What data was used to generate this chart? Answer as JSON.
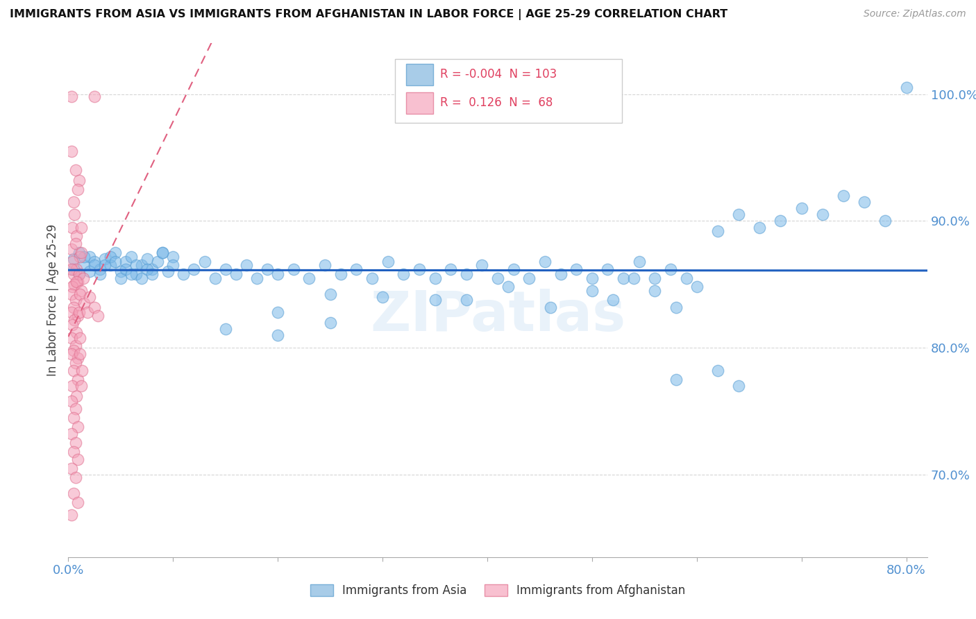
{
  "title": "IMMIGRANTS FROM ASIA VS IMMIGRANTS FROM AFGHANISTAN IN LABOR FORCE | AGE 25-29 CORRELATION CHART",
  "source": "Source: ZipAtlas.com",
  "ylabel": "In Labor Force | Age 25-29",
  "xlim": [
    0.0,
    0.82
  ],
  "ylim": [
    0.635,
    1.04
  ],
  "x_tick_positions": [
    0.0,
    0.1,
    0.2,
    0.3,
    0.4,
    0.5,
    0.6,
    0.7,
    0.8
  ],
  "x_tick_labels": [
    "0.0%",
    "",
    "",
    "",
    "",
    "",
    "",
    "",
    "80.0%"
  ],
  "y_tick_positions": [
    0.7,
    0.8,
    0.9,
    1.0
  ],
  "y_tick_labels": [
    "70.0%",
    "80.0%",
    "90.0%",
    "100.0%"
  ],
  "watermark": "ZIPatlas",
  "background_color": "#ffffff",
  "asia_color": "#7ab8e8",
  "asia_edge_color": "#5a9fd4",
  "afghan_color": "#f4a0b8",
  "afghan_edge_color": "#e07090",
  "asia_trend_color": "#2060c0",
  "afghan_trend_color": "#e06080",
  "asia_R": -0.004,
  "asia_N": 103,
  "afghan_R": 0.126,
  "afghan_N": 68,
  "legend_R_color": "#e04060",
  "tick_color": "#5090d0",
  "grid_color": "#cccccc",
  "asia_points": [
    [
      0.005,
      0.87
    ],
    [
      0.01,
      0.875
    ],
    [
      0.015,
      0.865
    ],
    [
      0.02,
      0.872
    ],
    [
      0.025,
      0.868
    ],
    [
      0.03,
      0.862
    ],
    [
      0.035,
      0.87
    ],
    [
      0.04,
      0.865
    ],
    [
      0.045,
      0.875
    ],
    [
      0.05,
      0.86
    ],
    [
      0.055,
      0.868
    ],
    [
      0.06,
      0.872
    ],
    [
      0.065,
      0.858
    ],
    [
      0.07,
      0.865
    ],
    [
      0.075,
      0.87
    ],
    [
      0.08,
      0.862
    ],
    [
      0.085,
      0.868
    ],
    [
      0.09,
      0.875
    ],
    [
      0.095,
      0.86
    ],
    [
      0.1,
      0.872
    ],
    [
      0.005,
      0.862
    ],
    [
      0.01,
      0.858
    ],
    [
      0.015,
      0.872
    ],
    [
      0.02,
      0.86
    ],
    [
      0.025,
      0.865
    ],
    [
      0.03,
      0.858
    ],
    [
      0.035,
      0.865
    ],
    [
      0.04,
      0.872
    ],
    [
      0.045,
      0.868
    ],
    [
      0.05,
      0.855
    ],
    [
      0.055,
      0.862
    ],
    [
      0.06,
      0.858
    ],
    [
      0.065,
      0.865
    ],
    [
      0.07,
      0.855
    ],
    [
      0.075,
      0.862
    ],
    [
      0.08,
      0.858
    ],
    [
      0.09,
      0.875
    ],
    [
      0.1,
      0.865
    ],
    [
      0.11,
      0.858
    ],
    [
      0.12,
      0.862
    ],
    [
      0.13,
      0.868
    ],
    [
      0.14,
      0.855
    ],
    [
      0.15,
      0.862
    ],
    [
      0.16,
      0.858
    ],
    [
      0.17,
      0.865
    ],
    [
      0.18,
      0.855
    ],
    [
      0.19,
      0.862
    ],
    [
      0.2,
      0.858
    ],
    [
      0.215,
      0.862
    ],
    [
      0.23,
      0.855
    ],
    [
      0.245,
      0.865
    ],
    [
      0.26,
      0.858
    ],
    [
      0.275,
      0.862
    ],
    [
      0.29,
      0.855
    ],
    [
      0.305,
      0.868
    ],
    [
      0.32,
      0.858
    ],
    [
      0.335,
      0.862
    ],
    [
      0.35,
      0.855
    ],
    [
      0.365,
      0.862
    ],
    [
      0.38,
      0.858
    ],
    [
      0.395,
      0.865
    ],
    [
      0.41,
      0.855
    ],
    [
      0.425,
      0.862
    ],
    [
      0.44,
      0.855
    ],
    [
      0.455,
      0.868
    ],
    [
      0.47,
      0.858
    ],
    [
      0.485,
      0.862
    ],
    [
      0.5,
      0.855
    ],
    [
      0.515,
      0.862
    ],
    [
      0.53,
      0.855
    ],
    [
      0.545,
      0.868
    ],
    [
      0.56,
      0.855
    ],
    [
      0.575,
      0.862
    ],
    [
      0.59,
      0.855
    ],
    [
      0.15,
      0.815
    ],
    [
      0.2,
      0.81
    ],
    [
      0.25,
      0.842
    ],
    [
      0.3,
      0.84
    ],
    [
      0.35,
      0.838
    ],
    [
      0.2,
      0.828
    ],
    [
      0.25,
      0.82
    ],
    [
      0.38,
      0.838
    ],
    [
      0.42,
      0.848
    ],
    [
      0.46,
      0.832
    ],
    [
      0.5,
      0.845
    ],
    [
      0.52,
      0.838
    ],
    [
      0.54,
      0.855
    ],
    [
      0.56,
      0.845
    ],
    [
      0.58,
      0.832
    ],
    [
      0.6,
      0.848
    ],
    [
      0.62,
      0.892
    ],
    [
      0.64,
      0.905
    ],
    [
      0.66,
      0.895
    ],
    [
      0.68,
      0.9
    ],
    [
      0.7,
      0.91
    ],
    [
      0.72,
      0.905
    ],
    [
      0.74,
      0.92
    ],
    [
      0.76,
      0.915
    ],
    [
      0.78,
      0.9
    ],
    [
      0.8,
      1.005
    ],
    [
      0.58,
      0.775
    ],
    [
      0.62,
      0.782
    ],
    [
      0.64,
      0.77
    ]
  ],
  "afghan_points": [
    [
      0.003,
      0.998
    ],
    [
      0.025,
      0.998
    ],
    [
      0.003,
      0.955
    ],
    [
      0.007,
      0.94
    ],
    [
      0.01,
      0.932
    ],
    [
      0.005,
      0.915
    ],
    [
      0.009,
      0.925
    ],
    [
      0.006,
      0.905
    ],
    [
      0.004,
      0.895
    ],
    [
      0.008,
      0.888
    ],
    [
      0.012,
      0.895
    ],
    [
      0.003,
      0.878
    ],
    [
      0.007,
      0.882
    ],
    [
      0.011,
      0.872
    ],
    [
      0.004,
      0.868
    ],
    [
      0.008,
      0.862
    ],
    [
      0.012,
      0.875
    ],
    [
      0.005,
      0.858
    ],
    [
      0.009,
      0.852
    ],
    [
      0.003,
      0.862
    ],
    [
      0.006,
      0.85
    ],
    [
      0.01,
      0.858
    ],
    [
      0.014,
      0.855
    ],
    [
      0.004,
      0.848
    ],
    [
      0.008,
      0.852
    ],
    [
      0.012,
      0.845
    ],
    [
      0.003,
      0.842
    ],
    [
      0.007,
      0.838
    ],
    [
      0.011,
      0.842
    ],
    [
      0.005,
      0.832
    ],
    [
      0.009,
      0.825
    ],
    [
      0.003,
      0.828
    ],
    [
      0.006,
      0.822
    ],
    [
      0.01,
      0.828
    ],
    [
      0.004,
      0.818
    ],
    [
      0.008,
      0.812
    ],
    [
      0.003,
      0.808
    ],
    [
      0.007,
      0.802
    ],
    [
      0.011,
      0.808
    ],
    [
      0.005,
      0.798
    ],
    [
      0.009,
      0.792
    ],
    [
      0.003,
      0.795
    ],
    [
      0.007,
      0.788
    ],
    [
      0.011,
      0.795
    ],
    [
      0.005,
      0.782
    ],
    [
      0.009,
      0.775
    ],
    [
      0.013,
      0.782
    ],
    [
      0.004,
      0.77
    ],
    [
      0.008,
      0.762
    ],
    [
      0.012,
      0.77
    ],
    [
      0.003,
      0.758
    ],
    [
      0.007,
      0.752
    ],
    [
      0.005,
      0.745
    ],
    [
      0.009,
      0.738
    ],
    [
      0.003,
      0.732
    ],
    [
      0.007,
      0.725
    ],
    [
      0.005,
      0.718
    ],
    [
      0.009,
      0.712
    ],
    [
      0.003,
      0.705
    ],
    [
      0.007,
      0.698
    ],
    [
      0.005,
      0.685
    ],
    [
      0.009,
      0.678
    ],
    [
      0.003,
      0.668
    ],
    [
      0.015,
      0.835
    ],
    [
      0.018,
      0.828
    ],
    [
      0.02,
      0.84
    ],
    [
      0.025,
      0.832
    ],
    [
      0.028,
      0.825
    ]
  ]
}
